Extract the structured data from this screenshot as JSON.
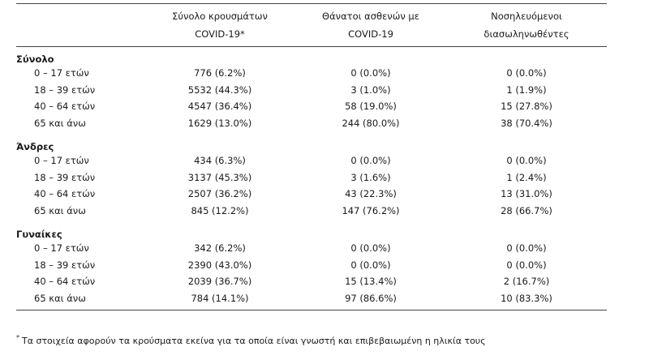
{
  "table": {
    "headers": [
      "",
      "Σύνολο κρουσμάτων COVID-19*",
      "Θάνατοι ασθενών με COVID-19",
      "Νοσηλευόμενοι διασωληνωθέντες"
    ],
    "header_lines": [
      [
        ""
      ],
      [
        "Σύνολο κρουσμάτων",
        "COVID-19*"
      ],
      [
        "Θάνατοι ασθενών με",
        "COVID-19"
      ],
      [
        "Νοσηλευόμενοι",
        "διασωληνωθέντες"
      ]
    ],
    "groups": [
      {
        "title": "Σύνολο",
        "rows": [
          [
            "0 – 17 ετών",
            "776 (6.2%)",
            "0 (0.0%)",
            "0 (0.0%)"
          ],
          [
            "18 – 39 ετών",
            "5532 (44.3%)",
            "3 (1.0%)",
            "1 (1.9%)"
          ],
          [
            "40 – 64 ετών",
            "4547 (36.4%)",
            "58 (19.0%)",
            "15 (27.8%)"
          ],
          [
            "65 και άνω",
            "1629 (13.0%)",
            "244 (80.0%)",
            "38 (70.4%)"
          ]
        ]
      },
      {
        "title": "Άνδρες",
        "rows": [
          [
            "0 – 17 ετών",
            "434 (6.3%)",
            "0 (0.0%)",
            "0 (0.0%)"
          ],
          [
            "18 – 39 ετών",
            "3137 (45.3%)",
            "3 (1.6%)",
            "1 (2.4%)"
          ],
          [
            "40 – 64 ετών",
            "2507 (36.2%)",
            "43 (22.3%)",
            "13 (31.0%)"
          ],
          [
            "65 και άνω",
            "845 (12.2%)",
            "147 (76.2%)",
            "28 (66.7%)"
          ]
        ]
      },
      {
        "title": "Γυναίκες",
        "rows": [
          [
            "0 – 17 ετών",
            "342 (6.2%)",
            "0 (0.0%)",
            "0 (0.0%)"
          ],
          [
            "18 – 39 ετών",
            "2390 (43.0%)",
            "0 (0.0%)",
            "0 (0.0%)"
          ],
          [
            "40 – 64 ετών",
            "2039 (36.7%)",
            "15 (13.4%)",
            "2 (16.7%)"
          ],
          [
            "65 και άνω",
            "784 (14.1%)",
            "97 (86.6%)",
            "10 (83.3%)"
          ]
        ]
      }
    ]
  },
  "footnote": {
    "marker": "*",
    "text": "Τα στοιχεία αφορούν τα κρούσματα εκείνα για τα οποία είναι γνωστή και επιβεβαιωμένη η ηλικία τους"
  }
}
